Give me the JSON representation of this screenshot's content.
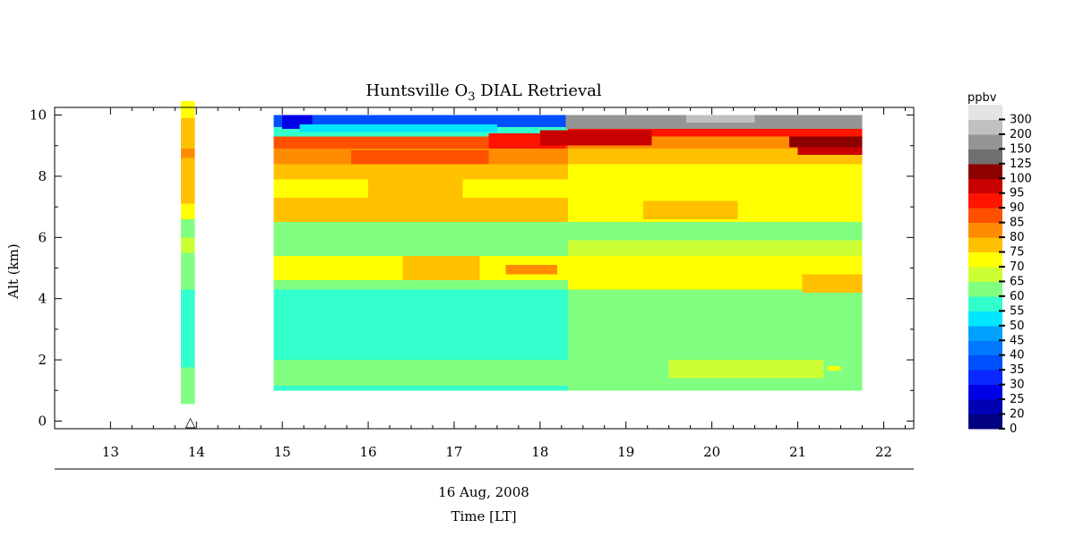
{
  "chart_data": {
    "type": "heatmap",
    "title": "Huntsville O",
    "title_subscript": "3",
    "title_suffix": " DIAL Retrieval",
    "ylabel": "Alt (km)",
    "xlabel_date": "16 Aug, 2008",
    "xlabel": "Time [LT]",
    "xlim": [
      12.35,
      22.35
    ],
    "ylim": [
      -0.25,
      10.25
    ],
    "x_ticks": [
      13,
      14,
      15,
      16,
      17,
      18,
      19,
      20,
      21,
      22
    ],
    "y_ticks": [
      0,
      2,
      4,
      6,
      8,
      10
    ],
    "ozonesonde_marker": {
      "x": 13.93,
      "y": 0,
      "symbol": "△"
    },
    "colorbar": {
      "unit": "ppbv",
      "labels": [
        "0",
        "20",
        "25",
        "30",
        "35",
        "40",
        "45",
        "50",
        "55",
        "60",
        "65",
        "70",
        "75",
        "80",
        "85",
        "90",
        "95",
        "100",
        "125",
        "150",
        "200",
        "300"
      ],
      "colors": [
        "#000080",
        "#0000b4",
        "#0000e6",
        "#0a28ff",
        "#0050ff",
        "#0078ff",
        "#00a0ff",
        "#00e6ff",
        "#33ffcc",
        "#80ff80",
        "#ccff33",
        "#ffff00",
        "#ffc000",
        "#ff8c00",
        "#ff5000",
        "#ff1400",
        "#c80000",
        "#8c0000",
        "#707070",
        "#959595",
        "#c0c0c0",
        "#e4e4e4"
      ]
    },
    "sonde_profile": {
      "x_range": [
        13.82,
        13.98
      ],
      "bands": [
        {
          "y0": 0.55,
          "y1": 1.75,
          "value": 60
        },
        {
          "y0": 1.75,
          "y1": 4.3,
          "value": 55
        },
        {
          "y0": 4.3,
          "y1": 5.5,
          "value": 60
        },
        {
          "y0": 5.5,
          "y1": 6.0,
          "value": 65
        },
        {
          "y0": 6.0,
          "y1": 6.6,
          "value": 60
        },
        {
          "y0": 6.6,
          "y1": 7.1,
          "value": 70
        },
        {
          "y0": 7.1,
          "y1": 7.7,
          "value": 75
        },
        {
          "y0": 7.7,
          "y1": 8.6,
          "value": 75
        },
        {
          "y0": 8.6,
          "y1": 8.9,
          "value": 80
        },
        {
          "y0": 8.9,
          "y1": 9.9,
          "value": 75
        },
        {
          "y0": 9.9,
          "y1": 10.45,
          "value": 70
        }
      ]
    },
    "lidar_time_range": [
      14.9,
      21.75
    ],
    "lidar_bands": [
      {
        "y0": 1.0,
        "y1": 1.15,
        "left": 55,
        "right": 60
      },
      {
        "y0": 1.15,
        "y1": 2.0,
        "left": 60,
        "right": 60
      },
      {
        "y0": 2.0,
        "y1": 2.7,
        "left": 55,
        "right": 60
      },
      {
        "y0": 2.7,
        "y1": 4.3,
        "left": 55,
        "right": 60
      },
      {
        "y0": 4.3,
        "y1": 4.6,
        "left": 60,
        "right": 70
      },
      {
        "y0": 4.6,
        "y1": 5.4,
        "left": 70,
        "right": 70
      },
      {
        "y0": 5.4,
        "y1": 5.9,
        "left": 60,
        "right": 65
      },
      {
        "y0": 5.9,
        "y1": 6.5,
        "left": 60,
        "right": 60
      },
      {
        "y0": 6.5,
        "y1": 7.3,
        "left": 75,
        "right": 70
      },
      {
        "y0": 7.3,
        "y1": 7.9,
        "left": 70,
        "right": 70
      },
      {
        "y0": 7.9,
        "y1": 8.4,
        "left": 75,
        "right": 70
      },
      {
        "y0": 8.4,
        "y1": 8.9,
        "left": 80,
        "right": 75
      },
      {
        "y0": 8.9,
        "y1": 9.3,
        "left": 85,
        "right": 80
      },
      {
        "y0": 9.3,
        "y1": 9.6,
        "left": 55,
        "right": 90
      },
      {
        "y0": 9.6,
        "y1": 10.0,
        "left": 35,
        "right": 125
      }
    ],
    "lidar_patches": [
      {
        "x0": 16.4,
        "x1": 17.3,
        "y0": 4.6,
        "y1": 5.4,
        "value": 75
      },
      {
        "x0": 17.6,
        "x1": 18.2,
        "y0": 4.8,
        "y1": 5.1,
        "value": 80
      },
      {
        "x0": 16.0,
        "x1": 17.1,
        "y0": 7.3,
        "y1": 7.9,
        "value": 75
      },
      {
        "x0": 19.2,
        "x1": 20.3,
        "y0": 6.6,
        "y1": 7.2,
        "value": 75
      },
      {
        "x0": 21.05,
        "x1": 21.75,
        "y0": 4.2,
        "y1": 4.8,
        "value": 75
      },
      {
        "x0": 19.5,
        "x1": 21.3,
        "y0": 1.4,
        "y1": 2.0,
        "value": 65
      },
      {
        "x0": 15.8,
        "x1": 17.4,
        "y0": 8.4,
        "y1": 8.85,
        "value": 85
      },
      {
        "x0": 17.4,
        "x1": 18.3,
        "y0": 8.9,
        "y1": 9.4,
        "value": 90
      },
      {
        "x0": 15.0,
        "x1": 15.35,
        "y0": 9.55,
        "y1": 10.0,
        "value": 25
      },
      {
        "x0": 15.2,
        "x1": 17.5,
        "y0": 9.45,
        "y1": 9.7,
        "value": 50
      },
      {
        "x0": 18.0,
        "x1": 19.3,
        "y0": 9.0,
        "y1": 9.5,
        "value": 95
      },
      {
        "x0": 18.3,
        "x1": 21.75,
        "y0": 9.55,
        "y1": 10.0,
        "value": 150
      },
      {
        "x0": 19.7,
        "x1": 20.5,
        "y0": 9.75,
        "y1": 10.0,
        "value": 200
      },
      {
        "x0": 20.9,
        "x1": 21.75,
        "y0": 8.95,
        "y1": 9.3,
        "value": 100
      },
      {
        "x0": 21.0,
        "x1": 21.75,
        "y0": 8.7,
        "y1": 8.95,
        "value": 95
      },
      {
        "x0": 21.35,
        "x1": 21.5,
        "y0": 1.65,
        "y1": 1.8,
        "value": 70
      }
    ]
  }
}
